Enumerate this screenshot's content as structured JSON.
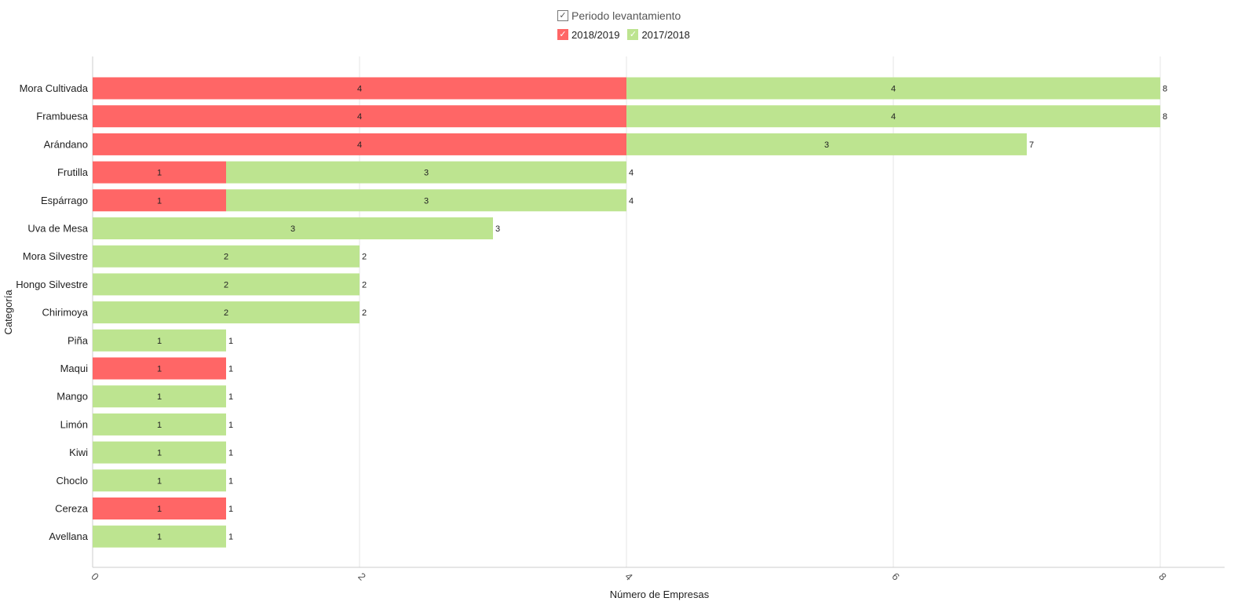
{
  "legend": {
    "title": "Periodo levantamiento",
    "check_glyph": "✓",
    "items": [
      {
        "label": "2018/2019",
        "color": "#ff6666"
      },
      {
        "label": "2017/2018",
        "color": "#bde490"
      }
    ]
  },
  "chart_data": {
    "type": "bar",
    "orientation": "horizontal",
    "stacked": true,
    "xlabel": "Número de Empresas",
    "ylabel": "Categoría",
    "xlim": [
      0,
      8
    ],
    "xticks": [
      "0",
      "2",
      "4",
      "6",
      "8"
    ],
    "grid": true,
    "legend_position": "top-center",
    "categories": [
      "Mora Cultivada",
      "Frambuesa",
      "Arándano",
      "Frutilla",
      "Espárrago",
      "Uva de Mesa",
      "Mora Silvestre",
      "Hongo Silvestre",
      "Chirimoya",
      "Piña",
      "Maqui",
      "Mango",
      "Limón",
      "Kiwi",
      "Choclo",
      "Cereza",
      "Avellana"
    ],
    "series": [
      {
        "name": "2018/2019",
        "color": "#ff6666",
        "values": [
          4,
          4,
          4,
          1,
          1,
          0,
          0,
          0,
          0,
          0,
          1,
          0,
          0,
          0,
          0,
          1,
          0
        ]
      },
      {
        "name": "2017/2018",
        "color": "#bde490",
        "values": [
          4,
          4,
          3,
          3,
          3,
          3,
          2,
          2,
          2,
          1,
          0,
          1,
          1,
          1,
          1,
          0,
          1
        ]
      }
    ],
    "totals": [
      8,
      8,
      7,
      4,
      4,
      3,
      2,
      2,
      2,
      1,
      1,
      1,
      1,
      1,
      1,
      1,
      1
    ]
  }
}
